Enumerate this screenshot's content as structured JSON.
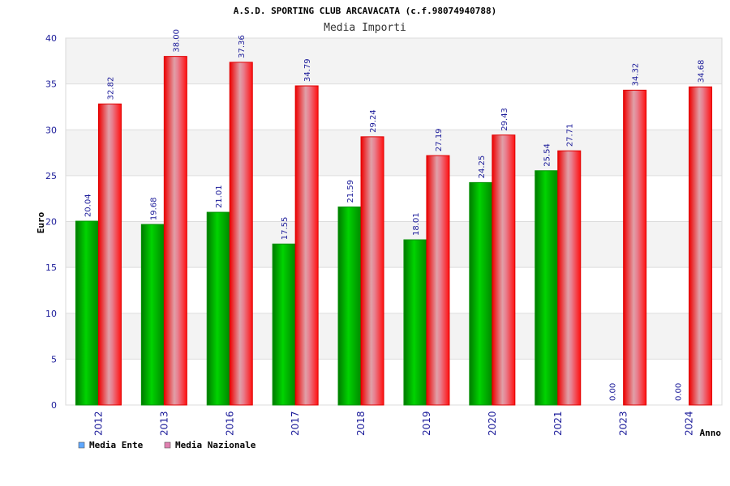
{
  "chart_data": {
    "type": "bar",
    "title": "A.S.D. SPORTING CLUB ARCAVACATA (c.f.98074940788)",
    "subtitle": "Media Importi",
    "xlabel": "Anno",
    "ylabel": "Euro",
    "ylim": [
      0,
      40
    ],
    "yticks": [
      0,
      5,
      10,
      15,
      20,
      25,
      30,
      35,
      40
    ],
    "grid": true,
    "legend_position": "bottom-left",
    "categories": [
      "2012",
      "2013",
      "2016",
      "2017",
      "2018",
      "2019",
      "2020",
      "2021",
      "2023",
      "2024"
    ],
    "series": [
      {
        "name": "Media Ente",
        "color": "#00b000",
        "legend_color": "#5fa8ff",
        "values": [
          20.04,
          19.68,
          21.01,
          17.55,
          21.59,
          18.01,
          24.25,
          25.54,
          0.0,
          0.0
        ],
        "labels": [
          "20.04",
          "19.68",
          "21.01",
          "17.55",
          "21.59",
          "18.01",
          "24.25",
          "25.54",
          "0.00",
          "0.00"
        ]
      },
      {
        "name": "Media Nazionale",
        "color": "#ff1a1a",
        "legend_color": "#e080b0",
        "values": [
          32.82,
          38.0,
          37.36,
          34.79,
          29.24,
          27.19,
          29.43,
          27.71,
          34.32,
          34.68
        ],
        "labels": [
          "32.82",
          "38.00",
          "37.36",
          "34.79",
          "29.24",
          "27.19",
          "29.43",
          "27.71",
          "34.32",
          "34.68"
        ]
      }
    ]
  }
}
